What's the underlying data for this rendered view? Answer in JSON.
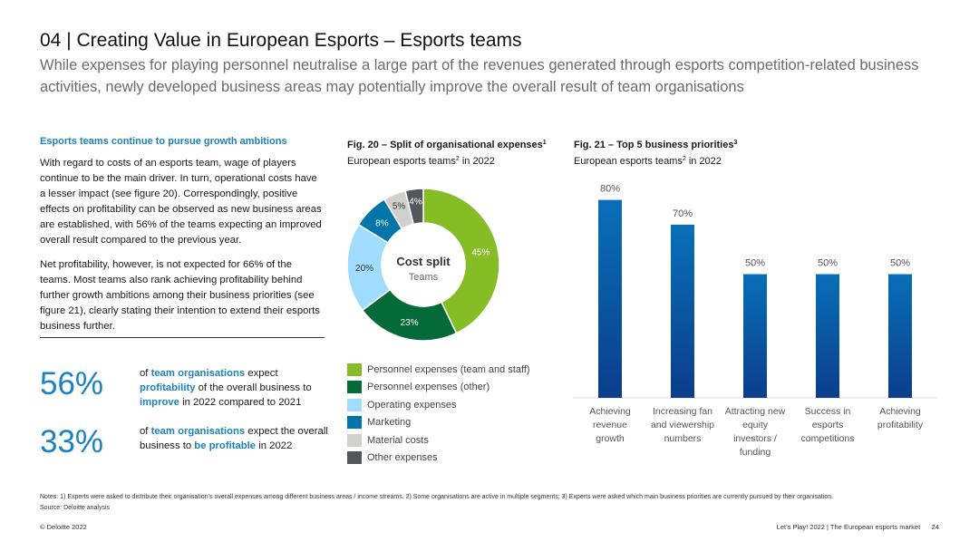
{
  "title": "04 | Creating Value in European Esports – Esports teams",
  "subtitle": "While expenses for playing personnel neutralise a large part of the revenues generated through esports competition-related business activities, newly developed business areas may potentially improve the overall result of team organisations",
  "left": {
    "heading": "Esports teams continue to pursue growth ambitions",
    "p1": "With regard to costs of an esports team, wage of players continue to be the main driver. In turn, operational costs have a lesser impact (see figure 20). Correspondingly, positive effects on profitability can be observed as new business areas are established, with 56% of the teams expecting an improved overall result compared to the previous year.",
    "p2": "Net profitability, however, is not expected for 66% of the teams. Most teams also rank achieving profitability behind further growth ambitions among their business priorities (see figure 21), clearly stating their intention to extend their esports business further."
  },
  "stats": [
    {
      "number": "56%",
      "t1": "of ",
      "b1": "team organisations",
      "t2": " expect ",
      "b2": "profitability",
      "t3": " of the overall business to ",
      "b3": "improve",
      "t4": " in 2022 compared to 2021"
    },
    {
      "number": "33%",
      "t1": "of ",
      "b1": "team organisations",
      "t2": " expect the overall business to ",
      "b2": "be profitable",
      "t3": " in 2022"
    }
  ],
  "fig20": {
    "title": "Fig. 20 – Split of organisational expenses",
    "title_sup": "1",
    "sub_a": "European esports teams",
    "sub_sup": "2",
    "sub_b": " in 2022"
  },
  "fig21": {
    "title": "Fig. 21 – Top 5 business priorities",
    "title_sup": "3",
    "sub_a": "European esports teams",
    "sub_sup": "2",
    "sub_b": " in 2022"
  },
  "chart_data": [
    {
      "type": "pie",
      "center_title": "Cost split",
      "center_subtitle": "Teams",
      "slices": [
        {
          "name": "Personnel expenses (team and staff)",
          "value": 45,
          "label": "45%",
          "color": "#86bc25"
        },
        {
          "name": "Personnel expenses (other)",
          "value": 23,
          "label": "23%",
          "color": "#046a38"
        },
        {
          "name": "Operating expenses",
          "value": 20,
          "label": "20%",
          "color": "#a0dcff"
        },
        {
          "name": "Marketing",
          "value": 8,
          "label": "8%",
          "color": "#0076a8"
        },
        {
          "name": "Material costs",
          "value": 5,
          "label": "5%",
          "color": "#d0d0ce"
        },
        {
          "name": "Other expenses",
          "value": 4,
          "label": "4%",
          "color": "#53565a"
        }
      ]
    },
    {
      "type": "bar",
      "categories": [
        "Achieving revenue growth",
        "Increasing fan and viewership numbers",
        "Attracting new equity investors / funding",
        "Success in esports competitions",
        "Achieving profitability"
      ],
      "category_lines": [
        [
          "Achieving",
          "revenue",
          "growth"
        ],
        [
          "Increasing fan",
          "and viewership",
          "numbers"
        ],
        [
          "Attracting new",
          "equity",
          "investors /",
          "funding"
        ],
        [
          "Success in",
          "esports",
          "competitions"
        ],
        [
          "Achieving",
          "profitability"
        ]
      ],
      "values": [
        80,
        70,
        50,
        50,
        50
      ],
      "labels": [
        "80%",
        "70%",
        "50%",
        "50%",
        "50%"
      ],
      "unit": "%",
      "ylim": [
        0,
        100
      ],
      "color_top": "#0a6fb8",
      "color_bottom": "#0b3d8c"
    }
  ],
  "notes": "Notes: 1) Experts were asked to distribute their organisation’s overall expenses among different business areas / income streams. 2) Some organisations are active in multiple segments; 3) Experts were asked which main business priorities are currently pursued by their organisation.",
  "source": "Source: Deloitte analysis",
  "footer_left": "© Deloitte 2022",
  "footer_right": "Let’s Play! 2022 | The European esports market      24"
}
